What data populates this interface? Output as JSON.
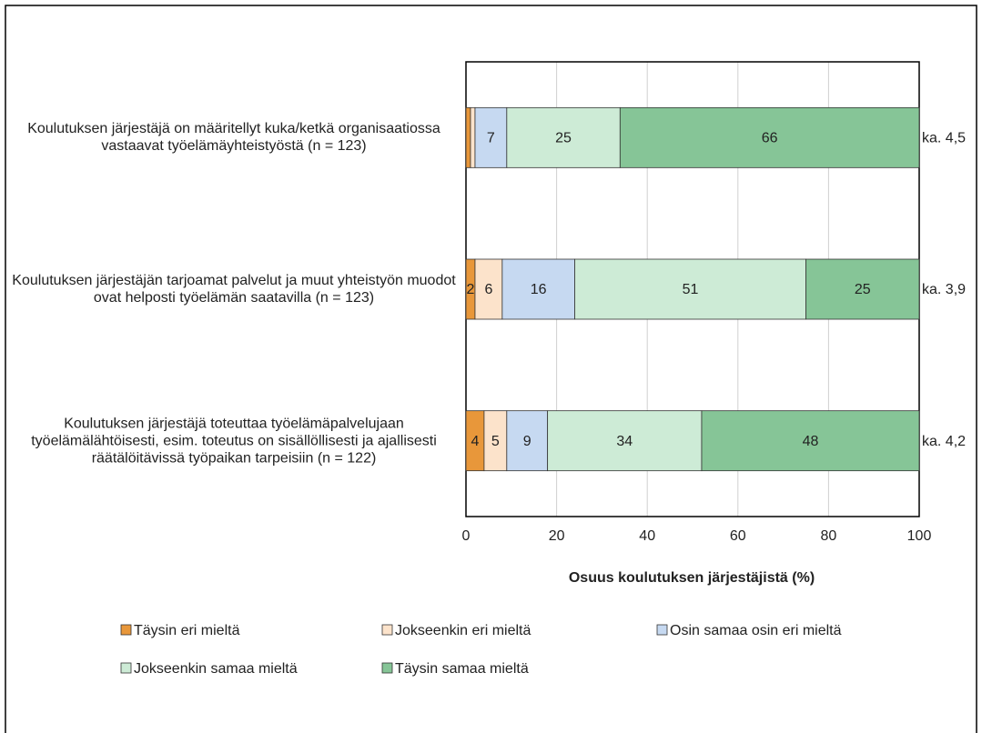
{
  "chart_data": {
    "type": "stacked-bar-horizontal",
    "categories": [
      "Koulutuksen järjestäjä on määritellyt kuka/ketkä organisaatiossa vastaavat työelämäyhteistyöstä (n = 123)",
      "Koulutuksen järjestäjän tarjoamat palvelut ja muut yhteistyön muodot ovat helposti työelämän saatavilla (n = 123)",
      "Koulutuksen järjestäjä toteuttaa työelämäpalvelujaan työelämälähtöisesti, esim. toteutus on sisällöllisesti ja ajallisesti räätälöitävissä työpaikan tarpeisiin (n = 122)"
    ],
    "series": [
      {
        "name": "Täysin eri mieltä",
        "color": "#e8973a",
        "values": [
          1,
          2,
          4
        ],
        "value_labels": [
          null,
          "2",
          "4"
        ]
      },
      {
        "name": "Jokseenkin eri mieltä",
        "color": "#fce3cb",
        "values": [
          1,
          6,
          5
        ],
        "value_labels": [
          null,
          "6",
          "5"
        ]
      },
      {
        "name": "Osin samaa osin eri mieltä",
        "color": "#c6d9f1",
        "values": [
          7,
          16,
          9
        ]
      },
      {
        "name": "Jokseenkin samaa mieltä",
        "color": "#cdebd6",
        "values": [
          25,
          51,
          34
        ]
      },
      {
        "name": "Täysin samaa mieltä",
        "color": "#86c597",
        "values": [
          66,
          25,
          48
        ]
      }
    ],
    "averages": [
      "ka. 4,5",
      "ka. 3,9",
      "ka. 4,2"
    ],
    "xlabel": "Osuus koulutuksen järjestäjistä (%)",
    "xlim": [
      0,
      100
    ],
    "xticks": [
      0,
      20,
      40,
      60,
      80,
      100
    ],
    "grid": true,
    "legend": "bottom"
  }
}
